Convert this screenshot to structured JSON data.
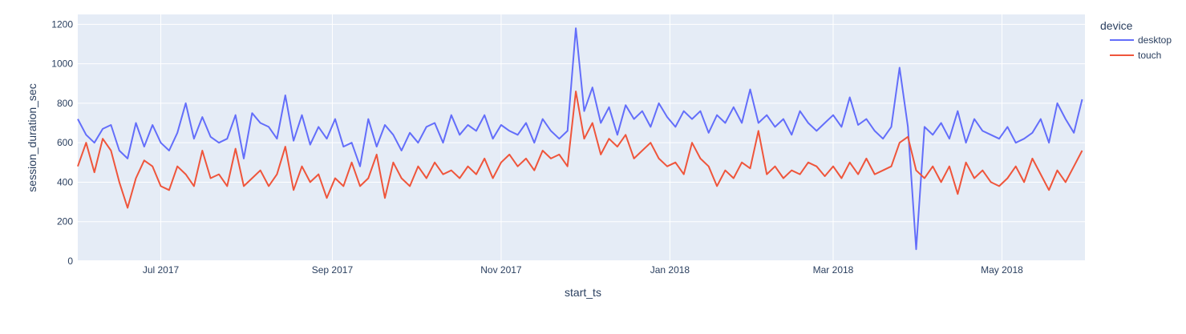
{
  "chart_data": {
    "type": "line",
    "title": "",
    "xlabel": "start_ts",
    "ylabel": "session_duration_sec",
    "x_start": "2017-06-01",
    "x_step_days": 3,
    "xlim": [
      "2017-06-01",
      "2018-05-31"
    ],
    "ylim": [
      0,
      1250
    ],
    "grid": true,
    "x_ticks": [
      {
        "date": "2017-07-01",
        "label": "Jul 2017"
      },
      {
        "date": "2017-09-01",
        "label": "Sep 2017"
      },
      {
        "date": "2017-11-01",
        "label": "Nov 2017"
      },
      {
        "date": "2018-01-01",
        "label": "Jan 2018"
      },
      {
        "date": "2018-03-01",
        "label": "Mar 2018"
      },
      {
        "date": "2018-05-01",
        "label": "May 2018"
      }
    ],
    "y_ticks": [
      {
        "value": 0,
        "label": "0"
      },
      {
        "value": 200,
        "label": "200"
      },
      {
        "value": 400,
        "label": "400"
      },
      {
        "value": 600,
        "label": "600"
      },
      {
        "value": 800,
        "label": "800"
      },
      {
        "value": 1000,
        "label": "1000"
      },
      {
        "value": 1200,
        "label": "1200"
      }
    ],
    "legend": {
      "title": "device",
      "placement": "top-right-outside"
    },
    "series": [
      {
        "name": "desktop",
        "color": "#636EFA",
        "values": [
          720,
          640,
          600,
          670,
          690,
          560,
          520,
          700,
          580,
          690,
          600,
          560,
          650,
          800,
          620,
          730,
          630,
          600,
          620,
          740,
          520,
          750,
          700,
          680,
          620,
          840,
          610,
          740,
          590,
          680,
          620,
          720,
          580,
          600,
          480,
          720,
          580,
          690,
          640,
          560,
          650,
          600,
          680,
          700,
          600,
          740,
          640,
          690,
          660,
          740,
          620,
          690,
          660,
          640,
          700,
          600,
          720,
          660,
          620,
          660,
          1180,
          760,
          880,
          700,
          780,
          640,
          790,
          720,
          760,
          680,
          800,
          730,
          680,
          760,
          720,
          760,
          650,
          740,
          700,
          780,
          700,
          870,
          700,
          740,
          680,
          720,
          640,
          760,
          700,
          660,
          700,
          740,
          680,
          830,
          690,
          720,
          660,
          620,
          680,
          980,
          680,
          60,
          680,
          640,
          700,
          620,
          760,
          600,
          720,
          660,
          640,
          620,
          680,
          600,
          620,
          650,
          720,
          600,
          800,
          720,
          650,
          820
        ]
      },
      {
        "name": "touch",
        "color": "#EF553B",
        "values": [
          480,
          600,
          450,
          620,
          560,
          400,
          270,
          420,
          510,
          480,
          380,
          360,
          480,
          440,
          380,
          560,
          420,
          440,
          380,
          570,
          380,
          420,
          460,
          380,
          440,
          580,
          360,
          480,
          400,
          440,
          320,
          420,
          380,
          500,
          380,
          420,
          540,
          320,
          500,
          420,
          380,
          480,
          420,
          500,
          440,
          460,
          420,
          480,
          440,
          520,
          420,
          500,
          540,
          480,
          520,
          460,
          560,
          520,
          540,
          480,
          860,
          620,
          700,
          540,
          620,
          580,
          640,
          520,
          560,
          600,
          520,
          480,
          500,
          440,
          600,
          520,
          480,
          380,
          460,
          420,
          500,
          470,
          660,
          440,
          480,
          420,
          460,
          440,
          500,
          480,
          430,
          480,
          420,
          500,
          440,
          520,
          440,
          460,
          480,
          600,
          630,
          460,
          420,
          480,
          400,
          480,
          340,
          500,
          420,
          460,
          400,
          380,
          420,
          480,
          400,
          520,
          440,
          360,
          460,
          400,
          480,
          560
        ]
      }
    ]
  }
}
